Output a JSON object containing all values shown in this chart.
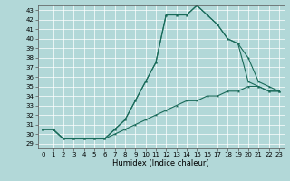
{
  "title": "",
  "xlabel": "Humidex (Indice chaleur)",
  "background_color": "#b2d8d8",
  "grid_color": "#ffffff",
  "line_color": "#1a6b5a",
  "xlim": [
    -0.5,
    23.5
  ],
  "ylim": [
    28.5,
    43.5
  ],
  "yticks": [
    29,
    30,
    31,
    32,
    33,
    34,
    35,
    36,
    37,
    38,
    39,
    40,
    41,
    42,
    43
  ],
  "xticks": [
    0,
    1,
    2,
    3,
    4,
    5,
    6,
    7,
    8,
    9,
    10,
    11,
    12,
    13,
    14,
    15,
    16,
    17,
    18,
    19,
    20,
    21,
    22,
    23
  ],
  "bottom_x": [
    0,
    1,
    2,
    3,
    4,
    5,
    6,
    7,
    8,
    9,
    10,
    11,
    12,
    13,
    14,
    15,
    16,
    17,
    18,
    19,
    20,
    21,
    22,
    23
  ],
  "bottom_y": [
    30.5,
    30.5,
    29.5,
    29.5,
    29.5,
    29.5,
    29.5,
    30.0,
    30.5,
    31.0,
    31.5,
    32.0,
    32.5,
    33.0,
    33.5,
    33.5,
    34.0,
    34.0,
    34.5,
    34.5,
    35.0,
    35.0,
    34.5,
    34.5
  ],
  "mid_x": [
    0,
    1,
    2,
    3,
    4,
    5,
    6,
    7,
    8,
    9,
    10,
    11,
    12,
    13,
    14,
    15,
    16,
    17,
    18,
    19,
    20,
    21,
    22,
    23
  ],
  "mid_y": [
    30.5,
    30.5,
    29.5,
    29.5,
    29.5,
    29.5,
    29.5,
    30.5,
    31.5,
    33.5,
    35.5,
    37.5,
    42.5,
    42.5,
    42.5,
    43.5,
    42.5,
    41.5,
    40.0,
    39.5,
    35.5,
    35.0,
    34.5,
    34.5
  ],
  "top_x": [
    0,
    1,
    2,
    3,
    4,
    5,
    6,
    7,
    8,
    9,
    10,
    11,
    12,
    13,
    14,
    15,
    16,
    17,
    18,
    19,
    20,
    21,
    22,
    23
  ],
  "top_y": [
    30.5,
    30.5,
    29.5,
    29.5,
    29.5,
    29.5,
    29.5,
    30.5,
    31.5,
    33.5,
    35.5,
    37.5,
    42.5,
    42.5,
    42.5,
    43.5,
    42.5,
    41.5,
    40.0,
    39.5,
    38.0,
    35.5,
    35.0,
    34.5
  ],
  "marker": "*",
  "markersize": 2.5,
  "linewidth": 0.8,
  "tick_labelsize": 5,
  "xlabel_fontsize": 6
}
